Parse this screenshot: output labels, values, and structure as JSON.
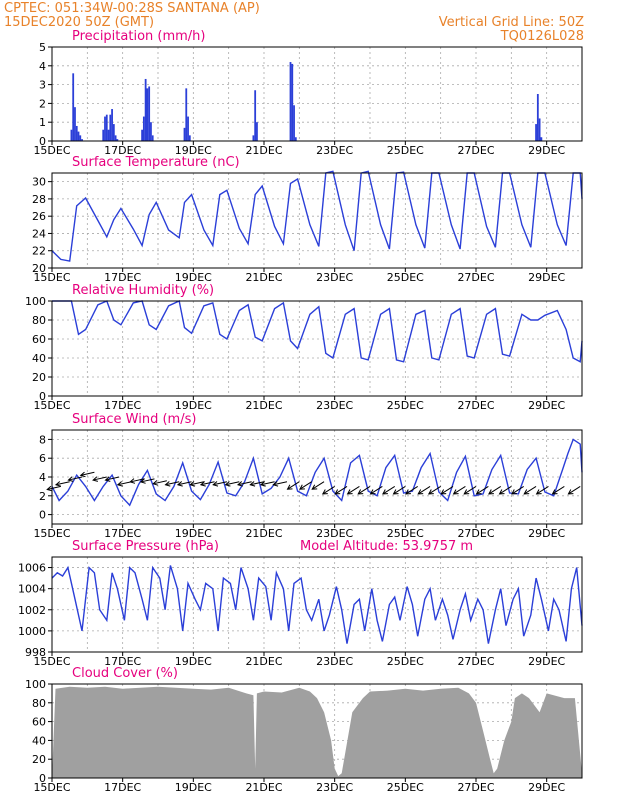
{
  "header": {
    "line1": "CPTEC:   051:34W-00:28S   SANTANA (AP)",
    "line2": "15DEC2020 50Z (GMT)",
    "grid_note": "Vertical Grid Line: 50Z",
    "code": "TQ0126L028"
  },
  "colors": {
    "header": "#e8822a",
    "title": "#e6007e",
    "line": "#2b3fd8",
    "bar": "#2b3fd8",
    "cloud": "#a0a0a0",
    "grid": "#aaaaaa",
    "axis": "#000000"
  },
  "chart_data": [
    {
      "type": "bar",
      "title": "Precipitation (mm/h)",
      "ylim": [
        0,
        5
      ],
      "yticks": [
        0,
        1,
        2,
        3,
        4,
        5
      ],
      "xticks": [
        "15DEC",
        "17DEC",
        "19DEC",
        "21DEC",
        "23DEC",
        "25DEC",
        "27DEC",
        "29DEC"
      ],
      "xlim_days": [
        15,
        30
      ],
      "grid": true,
      "x": [
        15.55,
        15.6,
        15.65,
        15.7,
        15.75,
        15.8,
        15.85,
        16.45,
        16.5,
        16.55,
        16.6,
        16.65,
        16.7,
        16.75,
        16.8,
        16.85,
        17.55,
        17.6,
        17.65,
        17.7,
        17.75,
        17.8,
        17.85,
        18.75,
        18.8,
        18.85,
        18.9,
        20.7,
        20.75,
        20.8,
        21.75,
        21.8,
        21.85,
        21.9,
        28.7,
        28.75,
        28.8,
        28.85
      ],
      "values": [
        0.6,
        3.6,
        1.8,
        0.8,
        0.5,
        0.3,
        0.1,
        0.6,
        1.3,
        1.4,
        0.6,
        1.4,
        1.7,
        0.9,
        0.3,
        0.1,
        0.6,
        1.3,
        3.3,
        2.8,
        2.9,
        1.0,
        0.3,
        0.7,
        2.8,
        1.3,
        0.3,
        0.3,
        2.7,
        1.0,
        4.2,
        4.1,
        1.9,
        0.2,
        0.9,
        2.5,
        1.2,
        0.2
      ]
    },
    {
      "type": "line",
      "title": "Surface Temperature (nC)",
      "ylim": [
        20,
        31
      ],
      "yticks": [
        20,
        22,
        24,
        26,
        28,
        30
      ],
      "xticks": [
        "15DEC",
        "17DEC",
        "19DEC",
        "21DEC",
        "23DEC",
        "25DEC",
        "27DEC",
        "29DEC"
      ],
      "xlim_days": [
        15,
        30
      ],
      "grid": true,
      "series": [
        {
          "x": [
            15,
            15.25,
            15.5,
            15.7,
            15.95,
            16.3,
            16.55,
            16.75,
            16.95,
            17.3,
            17.55,
            17.75,
            17.95,
            18.3,
            18.6,
            18.75,
            18.95,
            19.3,
            19.55,
            19.75,
            19.95,
            20.3,
            20.55,
            20.75,
            20.95,
            21.3,
            21.55,
            21.75,
            21.95,
            22.3,
            22.55,
            22.75,
            22.95,
            23.3,
            23.55,
            23.75,
            23.95,
            24.3,
            24.55,
            24.75,
            24.95,
            25.3,
            25.55,
            25.75,
            25.95,
            26.3,
            26.55,
            26.75,
            26.95,
            27.3,
            27.55,
            27.75,
            27.95,
            28.3,
            28.55,
            28.75,
            28.95,
            29.3,
            29.55,
            29.75,
            29.95,
            30
          ],
          "values": [
            22.0,
            21.0,
            20.8,
            27.2,
            28.1,
            25.5,
            23.6,
            25.6,
            26.9,
            24.5,
            22.6,
            26.2,
            27.6,
            24.4,
            23.5,
            27.6,
            28.5,
            24.4,
            22.6,
            28.5,
            29.0,
            24.6,
            22.8,
            28.5,
            29.5,
            24.8,
            22.8,
            29.8,
            30.3,
            25.0,
            22.5,
            31.0,
            31.2,
            25.0,
            22.0,
            31.0,
            31.2,
            25.0,
            22.2,
            31.0,
            31.1,
            25.0,
            22.3,
            31.0,
            31.0,
            25.0,
            22.2,
            31.0,
            31.0,
            24.8,
            22.4,
            31.0,
            31.0,
            25.0,
            22.4,
            31.0,
            31.0,
            25.0,
            22.6,
            31.0,
            31.0,
            28.0
          ]
        }
      ]
    },
    {
      "type": "line",
      "title": "Relative Humidity (%)",
      "ylim": [
        0,
        100
      ],
      "yticks": [
        0,
        20,
        40,
        60,
        80,
        100
      ],
      "xticks": [
        "15DEC",
        "17DEC",
        "19DEC",
        "21DEC",
        "23DEC",
        "25DEC",
        "27DEC",
        "29DEC"
      ],
      "xlim_days": [
        15,
        30
      ],
      "grid": true,
      "series": [
        {
          "x": [
            15,
            15.3,
            15.55,
            15.75,
            15.95,
            16.3,
            16.55,
            16.75,
            16.95,
            17.3,
            17.55,
            17.75,
            17.95,
            18.3,
            18.6,
            18.75,
            18.95,
            19.3,
            19.55,
            19.75,
            19.95,
            20.3,
            20.55,
            20.75,
            20.95,
            21.3,
            21.55,
            21.75,
            21.95,
            22.3,
            22.55,
            22.75,
            22.95,
            23.3,
            23.55,
            23.75,
            23.95,
            24.3,
            24.55,
            24.75,
            24.95,
            25.3,
            25.55,
            25.75,
            25.95,
            26.3,
            26.55,
            26.75,
            26.95,
            27.3,
            27.55,
            27.75,
            27.95,
            28.3,
            28.55,
            28.75,
            28.95,
            29.3,
            29.55,
            29.75,
            29.95,
            30
          ],
          "values": [
            100,
            100,
            100,
            65,
            70,
            96,
            100,
            80,
            75,
            98,
            100,
            75,
            70,
            95,
            100,
            72,
            66,
            95,
            98,
            65,
            60,
            90,
            96,
            62,
            58,
            92,
            98,
            58,
            50,
            86,
            94,
            45,
            40,
            86,
            92,
            40,
            38,
            86,
            92,
            38,
            36,
            86,
            90,
            40,
            38,
            86,
            92,
            42,
            40,
            86,
            92,
            44,
            42,
            86,
            80,
            80,
            85,
            90,
            70,
            40,
            36,
            58
          ]
        }
      ]
    },
    {
      "type": "line",
      "title": "Surface Wind (m/s)",
      "ylim": [
        -1,
        9
      ],
      "yticks": [
        0,
        2,
        4,
        6,
        8
      ],
      "xticks": [
        "15DEC",
        "17DEC",
        "19DEC",
        "21DEC",
        "23DEC",
        "25DEC",
        "27DEC",
        "29DEC"
      ],
      "xlim_days": [
        15,
        30
      ],
      "grid": true,
      "series": [
        {
          "x": [
            15,
            15.2,
            15.45,
            15.7,
            15.95,
            16.2,
            16.45,
            16.7,
            16.95,
            17.2,
            17.45,
            17.7,
            17.95,
            18.2,
            18.45,
            18.7,
            18.95,
            19.2,
            19.45,
            19.7,
            19.95,
            20.2,
            20.45,
            20.7,
            20.95,
            21.2,
            21.45,
            21.7,
            21.95,
            22.2,
            22.45,
            22.7,
            22.95,
            23.2,
            23.45,
            23.7,
            23.95,
            24.2,
            24.45,
            24.7,
            24.95,
            25.2,
            25.45,
            25.7,
            25.95,
            26.2,
            26.45,
            26.7,
            26.95,
            27.2,
            27.45,
            27.7,
            27.95,
            28.2,
            28.45,
            28.7,
            28.95,
            29.2,
            29.45,
            29.6,
            29.75,
            29.95,
            30
          ],
          "values": [
            3,
            1.5,
            2.5,
            4.2,
            3.0,
            1.5,
            3.0,
            4.2,
            2.0,
            1.0,
            3.2,
            4.7,
            2.2,
            1.5,
            3.0,
            5.5,
            2.5,
            1.6,
            3.2,
            5.6,
            2.3,
            2.0,
            3.5,
            6.0,
            2.2,
            2.8,
            4.0,
            6.0,
            2.5,
            2.0,
            4.5,
            6.0,
            2.5,
            1.5,
            5.5,
            6.3,
            2.5,
            2.0,
            5.0,
            6.3,
            2.3,
            2.5,
            5.0,
            6.5,
            2.4,
            1.5,
            4.5,
            6.2,
            2.0,
            2.2,
            4.8,
            6.3,
            2.3,
            2.2,
            4.8,
            6.0,
            2.4,
            2.0,
            4.8,
            6.5,
            8.0,
            7.5,
            4.5
          ]
        }
      ],
      "arrows_x": [
        15.25,
        15.5,
        15.85,
        16.2,
        16.55,
        16.9,
        17.25,
        17.6,
        17.9,
        18.25,
        18.6,
        18.95,
        19.3,
        19.6,
        19.95,
        20.3,
        20.65,
        21.0,
        21.3,
        21.65,
        22.0,
        22.35,
        22.7,
        23.0,
        23.35,
        23.7,
        24.0,
        24.35,
        24.7,
        25.0,
        25.35,
        25.7,
        26.0,
        26.35,
        26.7,
        27.0,
        27.35,
        27.7,
        28.0,
        28.35,
        28.7,
        29.05,
        29.5,
        29.95
      ],
      "arrows_y": [
        3.0,
        3.5,
        4.0,
        4.5,
        4.0,
        4.0,
        3.5,
        3.8,
        3.8,
        3.6,
        3.5,
        3.5,
        3.5,
        3.5,
        3.5,
        3.5,
        3.5,
        3.5,
        3.5,
        3.5,
        3.5,
        3.5,
        3.5,
        3.0,
        3.0,
        3.0,
        3.0,
        3.0,
        3.0,
        3.0,
        3.0,
        3.0,
        3.0,
        3.0,
        3.0,
        3.0,
        3.0,
        3.0,
        3.0,
        3.0,
        3.0,
        3.0,
        3.0,
        3.0
      ]
    },
    {
      "type": "line",
      "title": "Surface Pressure (hPa)",
      "annotation": "Model Altitude: 53.9757 m",
      "ylim": [
        998,
        1007
      ],
      "yticks": [
        998,
        1000,
        1002,
        1004,
        1006
      ],
      "xticks": [
        "15DEC",
        "17DEC",
        "19DEC",
        "21DEC",
        "23DEC",
        "25DEC",
        "27DEC",
        "29DEC"
      ],
      "xlim_days": [
        15,
        30
      ],
      "grid": true,
      "series": [
        {
          "x": [
            15,
            15.15,
            15.3,
            15.45,
            15.65,
            15.85,
            16.05,
            16.2,
            16.35,
            16.55,
            16.7,
            16.85,
            17.05,
            17.2,
            17.35,
            17.55,
            17.7,
            17.85,
            18.05,
            18.2,
            18.35,
            18.55,
            18.7,
            18.85,
            19.05,
            19.2,
            19.35,
            19.55,
            19.7,
            19.85,
            20.05,
            20.2,
            20.35,
            20.55,
            20.7,
            20.85,
            21.05,
            21.2,
            21.35,
            21.55,
            21.7,
            21.85,
            22.05,
            22.2,
            22.35,
            22.55,
            22.7,
            22.85,
            23.05,
            23.2,
            23.35,
            23.55,
            23.7,
            23.85,
            24.05,
            24.2,
            24.35,
            24.55,
            24.7,
            24.85,
            25.05,
            25.2,
            25.35,
            25.55,
            25.7,
            25.85,
            26.05,
            26.2,
            26.35,
            26.55,
            26.7,
            26.85,
            27.05,
            27.2,
            27.35,
            27.55,
            27.7,
            27.85,
            28.05,
            28.2,
            28.35,
            28.55,
            28.7,
            28.85,
            29.05,
            29.2,
            29.35,
            29.55,
            29.7,
            29.85,
            30
          ],
          "values": [
            1005,
            1005.5,
            1005.2,
            1006,
            1003,
            1000,
            1006,
            1005.5,
            1002,
            1001,
            1005.5,
            1004,
            1001,
            1006,
            1005.5,
            1003,
            1001,
            1006,
            1005,
            1002,
            1006.2,
            1004,
            1000,
            1004.5,
            1003,
            1002,
            1004.5,
            1004,
            1000,
            1005,
            1004.5,
            1002,
            1006,
            1004,
            1001,
            1005,
            1004.2,
            1001,
            1005.5,
            1004,
            1000,
            1004.5,
            1005,
            1002,
            1001,
            1003,
            1000,
            1001.5,
            1004.2,
            1002,
            998.8,
            1002.5,
            1003,
            1000,
            1004,
            1001,
            999,
            1002.5,
            1003.2,
            1001,
            1004.2,
            1002.5,
            999.5,
            1003,
            1004,
            1001,
            1003,
            1001.5,
            999.2,
            1002,
            1003.5,
            1001,
            1003,
            1002,
            998.8,
            1002,
            1004,
            1000.5,
            1003,
            1004,
            999.5,
            1001.5,
            1005,
            1003,
            1000,
            1003,
            1002,
            999,
            1004,
            1006,
            1000.5
          ]
        }
      ]
    },
    {
      "type": "area",
      "title": "Cloud Cover (%)",
      "ylim": [
        0,
        100
      ],
      "yticks": [
        0,
        20,
        40,
        60,
        80,
        100
      ],
      "xticks": [
        "15DEC",
        "17DEC",
        "19DEC",
        "21DEC",
        "23DEC",
        "25DEC",
        "27DEC",
        "29DEC"
      ],
      "xlim_days": [
        15,
        30
      ],
      "grid": true,
      "series": [
        {
          "x": [
            15,
            15.1,
            15.5,
            16,
            16.5,
            17,
            17.5,
            18,
            18.5,
            19,
            19.5,
            20,
            20.5,
            20.7,
            20.75,
            20.8,
            21,
            21.5,
            22,
            22.3,
            22.5,
            22.7,
            22.9,
            23.0,
            23.1,
            23.2,
            23.5,
            23.8,
            24,
            24.5,
            25,
            25.5,
            26,
            26.5,
            26.8,
            27.0,
            27.2,
            27.4,
            27.5,
            27.6,
            27.8,
            28.0,
            28.1,
            28.3,
            28.5,
            28.8,
            29,
            29.5,
            29.8,
            30
          ],
          "values": [
            0,
            95,
            97,
            96,
            97,
            95,
            96,
            97,
            96,
            95,
            94,
            96,
            90,
            88,
            10,
            90,
            92,
            91,
            96,
            92,
            85,
            70,
            40,
            10,
            2,
            5,
            70,
            85,
            92,
            93,
            95,
            93,
            95,
            96,
            90,
            80,
            50,
            20,
            5,
            10,
            40,
            60,
            85,
            90,
            85,
            70,
            90,
            85,
            85,
            5
          ]
        }
      ]
    }
  ]
}
